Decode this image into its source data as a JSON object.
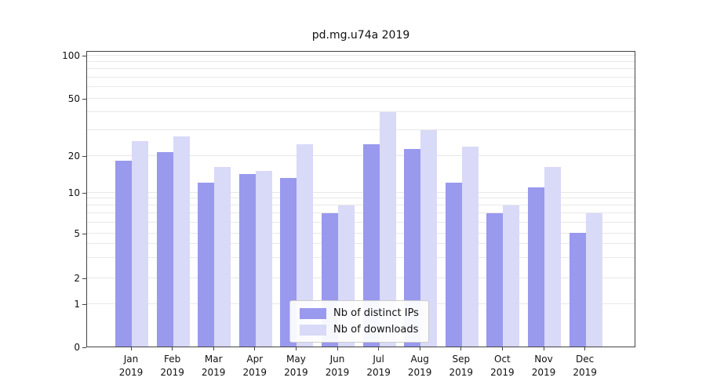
{
  "chart_data": {
    "type": "bar",
    "title": "pd.mg.u74a 2019",
    "categories": [
      "Jan",
      "Feb",
      "Mar",
      "Apr",
      "May",
      "Jun",
      "Jul",
      "Aug",
      "Sep",
      "Oct",
      "Nov",
      "Dec"
    ],
    "x_year_label": "2019",
    "series": [
      {
        "name": "Nb of distinct IPs",
        "color": "#9999ee",
        "values": [
          18,
          21,
          12,
          14,
          13,
          7,
          24,
          22,
          12,
          7,
          11,
          5
        ]
      },
      {
        "name": "Nb of downloads",
        "color": "#d9d9f8",
        "values": [
          25,
          27,
          16,
          15,
          24,
          8,
          40,
          30,
          23,
          8,
          16,
          7
        ]
      }
    ],
    "yscale": "symlog",
    "ylim": [
      0,
      105
    ],
    "yticks": [
      0,
      1,
      2,
      5,
      10,
      20,
      50,
      100
    ],
    "gridline_values": [
      1,
      2,
      3,
      4,
      5,
      6,
      7,
      8,
      9,
      10,
      20,
      30,
      40,
      50,
      60,
      70,
      80,
      90,
      100
    ],
    "grid": true,
    "legend_position": "lower center",
    "colors": {
      "grid": "#e8e8e8",
      "axis": "#444444",
      "text": "#111111"
    }
  }
}
